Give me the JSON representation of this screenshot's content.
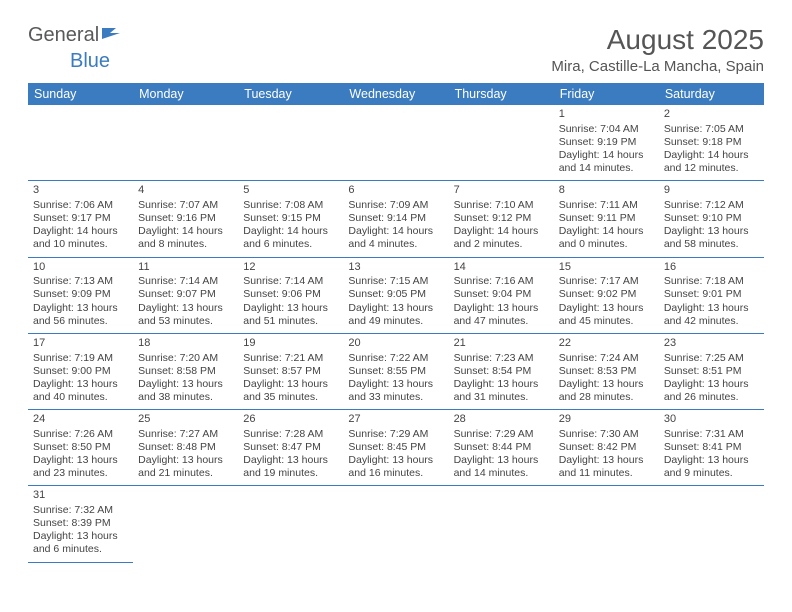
{
  "logo": {
    "general": "General",
    "blue": "Blue"
  },
  "title": "August 2025",
  "location": "Mira, Castille-La Mancha, Spain",
  "colors": {
    "header_bg": "#3b7bbf",
    "header_fg": "#ffffff",
    "text": "#444444",
    "logo_gray": "#58595b",
    "logo_blue": "#3b7bbf",
    "rule": "#3b7bbf",
    "background": "#ffffff"
  },
  "day_headers": [
    "Sunday",
    "Monday",
    "Tuesday",
    "Wednesday",
    "Thursday",
    "Friday",
    "Saturday"
  ],
  "weeks": [
    [
      null,
      null,
      null,
      null,
      null,
      {
        "n": "1",
        "sr": "Sunrise: 7:04 AM",
        "ss": "Sunset: 9:19 PM",
        "dl1": "Daylight: 14 hours",
        "dl2": "and 14 minutes."
      },
      {
        "n": "2",
        "sr": "Sunrise: 7:05 AM",
        "ss": "Sunset: 9:18 PM",
        "dl1": "Daylight: 14 hours",
        "dl2": "and 12 minutes."
      }
    ],
    [
      {
        "n": "3",
        "sr": "Sunrise: 7:06 AM",
        "ss": "Sunset: 9:17 PM",
        "dl1": "Daylight: 14 hours",
        "dl2": "and 10 minutes."
      },
      {
        "n": "4",
        "sr": "Sunrise: 7:07 AM",
        "ss": "Sunset: 9:16 PM",
        "dl1": "Daylight: 14 hours",
        "dl2": "and 8 minutes."
      },
      {
        "n": "5",
        "sr": "Sunrise: 7:08 AM",
        "ss": "Sunset: 9:15 PM",
        "dl1": "Daylight: 14 hours",
        "dl2": "and 6 minutes."
      },
      {
        "n": "6",
        "sr": "Sunrise: 7:09 AM",
        "ss": "Sunset: 9:14 PM",
        "dl1": "Daylight: 14 hours",
        "dl2": "and 4 minutes."
      },
      {
        "n": "7",
        "sr": "Sunrise: 7:10 AM",
        "ss": "Sunset: 9:12 PM",
        "dl1": "Daylight: 14 hours",
        "dl2": "and 2 minutes."
      },
      {
        "n": "8",
        "sr": "Sunrise: 7:11 AM",
        "ss": "Sunset: 9:11 PM",
        "dl1": "Daylight: 14 hours",
        "dl2": "and 0 minutes."
      },
      {
        "n": "9",
        "sr": "Sunrise: 7:12 AM",
        "ss": "Sunset: 9:10 PM",
        "dl1": "Daylight: 13 hours",
        "dl2": "and 58 minutes."
      }
    ],
    [
      {
        "n": "10",
        "sr": "Sunrise: 7:13 AM",
        "ss": "Sunset: 9:09 PM",
        "dl1": "Daylight: 13 hours",
        "dl2": "and 56 minutes."
      },
      {
        "n": "11",
        "sr": "Sunrise: 7:14 AM",
        "ss": "Sunset: 9:07 PM",
        "dl1": "Daylight: 13 hours",
        "dl2": "and 53 minutes."
      },
      {
        "n": "12",
        "sr": "Sunrise: 7:14 AM",
        "ss": "Sunset: 9:06 PM",
        "dl1": "Daylight: 13 hours",
        "dl2": "and 51 minutes."
      },
      {
        "n": "13",
        "sr": "Sunrise: 7:15 AM",
        "ss": "Sunset: 9:05 PM",
        "dl1": "Daylight: 13 hours",
        "dl2": "and 49 minutes."
      },
      {
        "n": "14",
        "sr": "Sunrise: 7:16 AM",
        "ss": "Sunset: 9:04 PM",
        "dl1": "Daylight: 13 hours",
        "dl2": "and 47 minutes."
      },
      {
        "n": "15",
        "sr": "Sunrise: 7:17 AM",
        "ss": "Sunset: 9:02 PM",
        "dl1": "Daylight: 13 hours",
        "dl2": "and 45 minutes."
      },
      {
        "n": "16",
        "sr": "Sunrise: 7:18 AM",
        "ss": "Sunset: 9:01 PM",
        "dl1": "Daylight: 13 hours",
        "dl2": "and 42 minutes."
      }
    ],
    [
      {
        "n": "17",
        "sr": "Sunrise: 7:19 AM",
        "ss": "Sunset: 9:00 PM",
        "dl1": "Daylight: 13 hours",
        "dl2": "and 40 minutes."
      },
      {
        "n": "18",
        "sr": "Sunrise: 7:20 AM",
        "ss": "Sunset: 8:58 PM",
        "dl1": "Daylight: 13 hours",
        "dl2": "and 38 minutes."
      },
      {
        "n": "19",
        "sr": "Sunrise: 7:21 AM",
        "ss": "Sunset: 8:57 PM",
        "dl1": "Daylight: 13 hours",
        "dl2": "and 35 minutes."
      },
      {
        "n": "20",
        "sr": "Sunrise: 7:22 AM",
        "ss": "Sunset: 8:55 PM",
        "dl1": "Daylight: 13 hours",
        "dl2": "and 33 minutes."
      },
      {
        "n": "21",
        "sr": "Sunrise: 7:23 AM",
        "ss": "Sunset: 8:54 PM",
        "dl1": "Daylight: 13 hours",
        "dl2": "and 31 minutes."
      },
      {
        "n": "22",
        "sr": "Sunrise: 7:24 AM",
        "ss": "Sunset: 8:53 PM",
        "dl1": "Daylight: 13 hours",
        "dl2": "and 28 minutes."
      },
      {
        "n": "23",
        "sr": "Sunrise: 7:25 AM",
        "ss": "Sunset: 8:51 PM",
        "dl1": "Daylight: 13 hours",
        "dl2": "and 26 minutes."
      }
    ],
    [
      {
        "n": "24",
        "sr": "Sunrise: 7:26 AM",
        "ss": "Sunset: 8:50 PM",
        "dl1": "Daylight: 13 hours",
        "dl2": "and 23 minutes."
      },
      {
        "n": "25",
        "sr": "Sunrise: 7:27 AM",
        "ss": "Sunset: 8:48 PM",
        "dl1": "Daylight: 13 hours",
        "dl2": "and 21 minutes."
      },
      {
        "n": "26",
        "sr": "Sunrise: 7:28 AM",
        "ss": "Sunset: 8:47 PM",
        "dl1": "Daylight: 13 hours",
        "dl2": "and 19 minutes."
      },
      {
        "n": "27",
        "sr": "Sunrise: 7:29 AM",
        "ss": "Sunset: 8:45 PM",
        "dl1": "Daylight: 13 hours",
        "dl2": "and 16 minutes."
      },
      {
        "n": "28",
        "sr": "Sunrise: 7:29 AM",
        "ss": "Sunset: 8:44 PM",
        "dl1": "Daylight: 13 hours",
        "dl2": "and 14 minutes."
      },
      {
        "n": "29",
        "sr": "Sunrise: 7:30 AM",
        "ss": "Sunset: 8:42 PM",
        "dl1": "Daylight: 13 hours",
        "dl2": "and 11 minutes."
      },
      {
        "n": "30",
        "sr": "Sunrise: 7:31 AM",
        "ss": "Sunset: 8:41 PM",
        "dl1": "Daylight: 13 hours",
        "dl2": "and 9 minutes."
      }
    ],
    [
      {
        "n": "31",
        "sr": "Sunrise: 7:32 AM",
        "ss": "Sunset: 8:39 PM",
        "dl1": "Daylight: 13 hours",
        "dl2": "and 6 minutes."
      },
      null,
      null,
      null,
      null,
      null,
      null
    ]
  ]
}
